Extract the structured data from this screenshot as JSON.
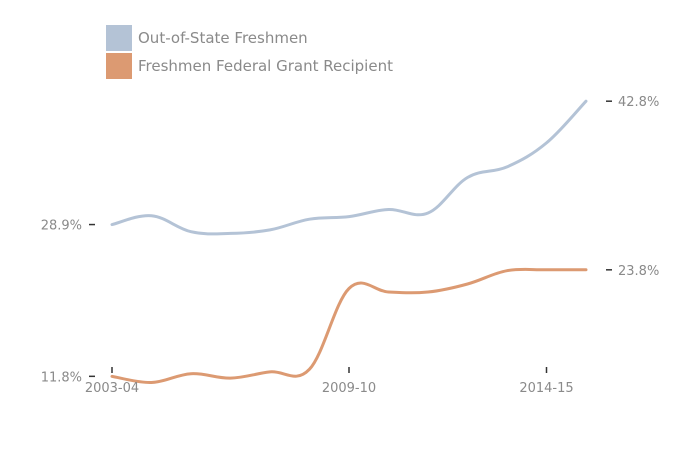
{
  "chart_data": {
    "type": "line",
    "x_tick_labels": [
      "2003-04",
      "2009-10",
      "2014-15"
    ],
    "x": [
      2003,
      2004,
      2005,
      2006,
      2007,
      2008,
      2009,
      2010,
      2011,
      2012,
      2013,
      2014,
      2015
    ],
    "series": [
      {
        "name": "Out-of-State Freshmen",
        "color": "#b4c3d6",
        "values": [
          28.9,
          29.9,
          28.1,
          27.9,
          28.3,
          29.5,
          29.8,
          30.6,
          30.2,
          34.2,
          35.4,
          38.1,
          42.8
        ],
        "start_label": "28.9%",
        "end_label": "42.8%"
      },
      {
        "name": "Freshmen Federal Grant Recipient",
        "color": "#dc9a72",
        "values": [
          11.8,
          11.1,
          12.1,
          11.6,
          12.3,
          12.6,
          21.7,
          21.3,
          21.3,
          22.2,
          23.7,
          23.8,
          23.8
        ],
        "start_label": "11.8%",
        "end_label": "23.8%"
      }
    ],
    "ylim": [
      3.5,
      54.2
    ],
    "grid": false,
    "legend_position": "top-left"
  },
  "colors": {
    "label_text": "#8a8a8a",
    "tick": "#333333"
  }
}
